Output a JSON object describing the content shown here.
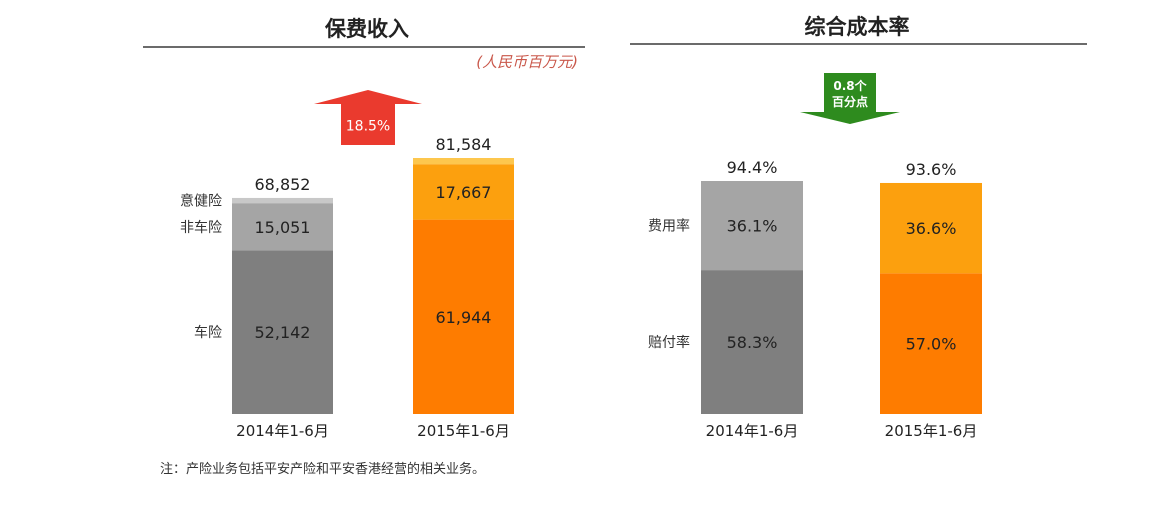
{
  "chart_data": [
    {
      "type": "bar",
      "stacked": true,
      "title": "保费收入",
      "unit": "(人民币百万元)",
      "categories": [
        "2014年1-6月",
        "2015年1-6月"
      ],
      "series": [
        {
          "name": "车险",
          "values": [
            52142,
            61944
          ]
        },
        {
          "name": "非车险",
          "values": [
            15051,
            17667
          ]
        },
        {
          "name": "意健险",
          "values": [
            1659,
            1973
          ]
        }
      ],
      "segment_labels": [
        [
          "52,142",
          "15,051",
          null
        ],
        [
          "61,944",
          "17,667",
          null
        ]
      ],
      "totals": [
        68852,
        81584
      ],
      "total_labels": [
        "68,852",
        "81,584"
      ],
      "ylim": [
        0,
        81584
      ],
      "grid": false,
      "colors": {
        "2014": [
          "#7f7f7f",
          "#a5a5a5",
          "#c8c8c8"
        ],
        "2015": [
          "#fe7c00",
          "#fca00e",
          "#fdc74e"
        ]
      },
      "arrow": {
        "direction": "up",
        "text": "18.5%",
        "color": "#ea3a2e"
      }
    },
    {
      "type": "bar",
      "stacked": true,
      "title": "综合成本率",
      "categories": [
        "2014年1-6月",
        "2015年1-6月"
      ],
      "series": [
        {
          "name": "赔付率",
          "values": [
            58.3,
            57.0
          ]
        },
        {
          "name": "费用率",
          "values": [
            36.1,
            36.6
          ]
        }
      ],
      "segment_labels": [
        [
          "58.3%",
          "36.1%"
        ],
        [
          "57.0%",
          "36.6%"
        ]
      ],
      "totals": [
        94.4,
        93.6
      ],
      "total_labels": [
        "94.4%",
        "93.6%"
      ],
      "ylim": [
        0,
        94.4
      ],
      "grid": false,
      "colors": {
        "2014": [
          "#7f7f7f",
          "#a5a5a5"
        ],
        "2015": [
          "#fe7c00",
          "#fca00e"
        ]
      },
      "arrow": {
        "direction": "down",
        "text": [
          "0.8个",
          "百分点"
        ],
        "color": "#2e8b1e"
      }
    }
  ],
  "footnote": "注：产险业务包括平安产险和平安香港经营的相关业务。"
}
